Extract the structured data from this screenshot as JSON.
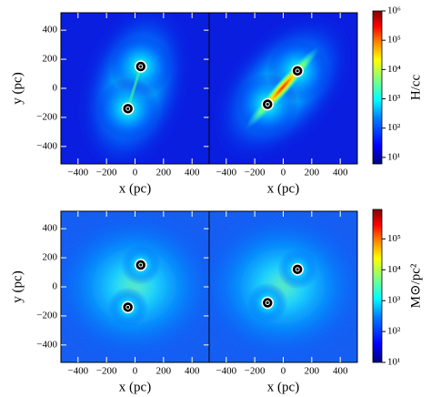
{
  "chart_data": [
    {
      "type": "heatmap",
      "xlim": [
        -520,
        520
      ],
      "ylim": [
        -520,
        520
      ],
      "xticks": [
        {
          "value": -400,
          "label": "−400"
        },
        {
          "value": -200,
          "label": "−200"
        },
        0,
        200,
        400
      ],
      "yticks": [
        {
          "value": -400,
          "label": "−400"
        },
        {
          "value": -200,
          "label": "−200"
        },
        0,
        200,
        400
      ],
      "xlabel": "x (pc)",
      "ylabel": "y (pc)",
      "sources": {
        "x": [
          40,
          -50
        ],
        "y": [
          150,
          -140
        ]
      }
    },
    {
      "type": "heatmap",
      "xlim": [
        -520,
        520
      ],
      "ylim": [
        -520,
        520
      ],
      "xticks": [
        {
          "value": -400,
          "label": "−400"
        },
        {
          "value": -200,
          "label": "−200"
        },
        0,
        200,
        400
      ],
      "xlabel": "x (pc)",
      "sources": {
        "x": [
          100,
          -110
        ],
        "y": [
          120,
          -110
        ]
      },
      "colorbar": {
        "label": "H/cc",
        "lim": [
          6,
          1000000
        ],
        "log": true,
        "ticks": [
          {
            "value": 10,
            "label": "10¹"
          },
          {
            "value": 100,
            "label": "10²"
          },
          {
            "value": 1000,
            "label": "10³"
          },
          {
            "value": 10000,
            "label": "10⁴"
          },
          {
            "value": 100000,
            "label": "10⁵"
          },
          {
            "value": 1000000,
            "label": "10⁶"
          }
        ]
      }
    },
    {
      "type": "heatmap",
      "xlim": [
        -520,
        520
      ],
      "ylim": [
        -520,
        520
      ],
      "xticks": [
        {
          "value": -400,
          "label": "−400"
        },
        {
          "value": -200,
          "label": "−200"
        },
        0,
        200,
        400
      ],
      "yticks": [
        {
          "value": -400,
          "label": "−400"
        },
        {
          "value": -200,
          "label": "−200"
        },
        0,
        200,
        400
      ],
      "xlabel": "x (pc)",
      "ylabel": "y (pc)",
      "sources": {
        "x": [
          40,
          -50
        ],
        "y": [
          150,
          -140
        ]
      }
    },
    {
      "type": "heatmap",
      "xlim": [
        -520,
        520
      ],
      "ylim": [
        -520,
        520
      ],
      "xticks": [
        {
          "value": -400,
          "label": "−400"
        },
        {
          "value": -200,
          "label": "−200"
        },
        0,
        200,
        400
      ],
      "xlabel": "x (pc)",
      "sources": {
        "x": [
          100,
          -110
        ],
        "y": [
          120,
          -110
        ]
      },
      "colorbar": {
        "label": "M⊙/pc²",
        "lim": [
          10,
          900000
        ],
        "log": true,
        "ticks": [
          {
            "value": 10,
            "label": "10¹"
          },
          {
            "value": 100,
            "label": "10²"
          },
          {
            "value": 1000,
            "label": "10³"
          },
          {
            "value": 10000,
            "label": "10⁴"
          },
          {
            "value": 100000,
            "label": "10⁵"
          }
        ]
      }
    }
  ]
}
